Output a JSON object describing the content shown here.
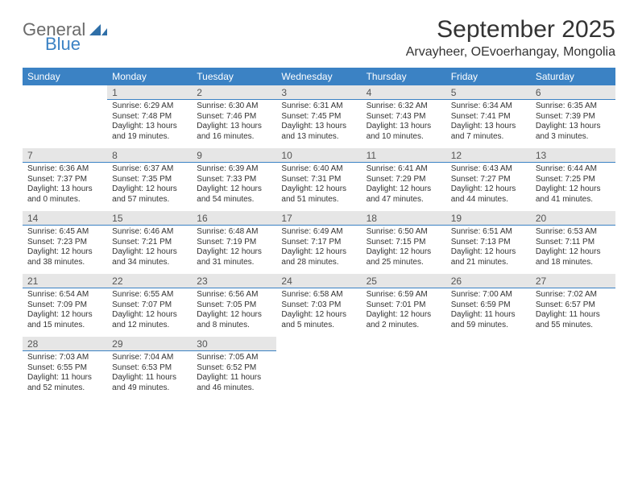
{
  "logo": {
    "word1": "General",
    "word2": "Blue"
  },
  "title": "September 2025",
  "location": "Arvayheer, OEvoerhangay, Mongolia",
  "day_headers": [
    "Sunday",
    "Monday",
    "Tuesday",
    "Wednesday",
    "Thursday",
    "Friday",
    "Saturday"
  ],
  "colors": {
    "header_bg": "#3b82c4",
    "header_fg": "#ffffff",
    "band_bg": "#e6e6e6",
    "band_border": "#3b82c4",
    "text": "#333333"
  },
  "weeks": [
    [
      {
        "n": "",
        "lines": []
      },
      {
        "n": "1",
        "lines": [
          "Sunrise: 6:29 AM",
          "Sunset: 7:48 PM",
          "Daylight: 13 hours and 19 minutes."
        ]
      },
      {
        "n": "2",
        "lines": [
          "Sunrise: 6:30 AM",
          "Sunset: 7:46 PM",
          "Daylight: 13 hours and 16 minutes."
        ]
      },
      {
        "n": "3",
        "lines": [
          "Sunrise: 6:31 AM",
          "Sunset: 7:45 PM",
          "Daylight: 13 hours and 13 minutes."
        ]
      },
      {
        "n": "4",
        "lines": [
          "Sunrise: 6:32 AM",
          "Sunset: 7:43 PM",
          "Daylight: 13 hours and 10 minutes."
        ]
      },
      {
        "n": "5",
        "lines": [
          "Sunrise: 6:34 AM",
          "Sunset: 7:41 PM",
          "Daylight: 13 hours and 7 minutes."
        ]
      },
      {
        "n": "6",
        "lines": [
          "Sunrise: 6:35 AM",
          "Sunset: 7:39 PM",
          "Daylight: 13 hours and 3 minutes."
        ]
      }
    ],
    [
      {
        "n": "7",
        "lines": [
          "Sunrise: 6:36 AM",
          "Sunset: 7:37 PM",
          "Daylight: 13 hours and 0 minutes."
        ]
      },
      {
        "n": "8",
        "lines": [
          "Sunrise: 6:37 AM",
          "Sunset: 7:35 PM",
          "Daylight: 12 hours and 57 minutes."
        ]
      },
      {
        "n": "9",
        "lines": [
          "Sunrise: 6:39 AM",
          "Sunset: 7:33 PM",
          "Daylight: 12 hours and 54 minutes."
        ]
      },
      {
        "n": "10",
        "lines": [
          "Sunrise: 6:40 AM",
          "Sunset: 7:31 PM",
          "Daylight: 12 hours and 51 minutes."
        ]
      },
      {
        "n": "11",
        "lines": [
          "Sunrise: 6:41 AM",
          "Sunset: 7:29 PM",
          "Daylight: 12 hours and 47 minutes."
        ]
      },
      {
        "n": "12",
        "lines": [
          "Sunrise: 6:43 AM",
          "Sunset: 7:27 PM",
          "Daylight: 12 hours and 44 minutes."
        ]
      },
      {
        "n": "13",
        "lines": [
          "Sunrise: 6:44 AM",
          "Sunset: 7:25 PM",
          "Daylight: 12 hours and 41 minutes."
        ]
      }
    ],
    [
      {
        "n": "14",
        "lines": [
          "Sunrise: 6:45 AM",
          "Sunset: 7:23 PM",
          "Daylight: 12 hours and 38 minutes."
        ]
      },
      {
        "n": "15",
        "lines": [
          "Sunrise: 6:46 AM",
          "Sunset: 7:21 PM",
          "Daylight: 12 hours and 34 minutes."
        ]
      },
      {
        "n": "16",
        "lines": [
          "Sunrise: 6:48 AM",
          "Sunset: 7:19 PM",
          "Daylight: 12 hours and 31 minutes."
        ]
      },
      {
        "n": "17",
        "lines": [
          "Sunrise: 6:49 AM",
          "Sunset: 7:17 PM",
          "Daylight: 12 hours and 28 minutes."
        ]
      },
      {
        "n": "18",
        "lines": [
          "Sunrise: 6:50 AM",
          "Sunset: 7:15 PM",
          "Daylight: 12 hours and 25 minutes."
        ]
      },
      {
        "n": "19",
        "lines": [
          "Sunrise: 6:51 AM",
          "Sunset: 7:13 PM",
          "Daylight: 12 hours and 21 minutes."
        ]
      },
      {
        "n": "20",
        "lines": [
          "Sunrise: 6:53 AM",
          "Sunset: 7:11 PM",
          "Daylight: 12 hours and 18 minutes."
        ]
      }
    ],
    [
      {
        "n": "21",
        "lines": [
          "Sunrise: 6:54 AM",
          "Sunset: 7:09 PM",
          "Daylight: 12 hours and 15 minutes."
        ]
      },
      {
        "n": "22",
        "lines": [
          "Sunrise: 6:55 AM",
          "Sunset: 7:07 PM",
          "Daylight: 12 hours and 12 minutes."
        ]
      },
      {
        "n": "23",
        "lines": [
          "Sunrise: 6:56 AM",
          "Sunset: 7:05 PM",
          "Daylight: 12 hours and 8 minutes."
        ]
      },
      {
        "n": "24",
        "lines": [
          "Sunrise: 6:58 AM",
          "Sunset: 7:03 PM",
          "Daylight: 12 hours and 5 minutes."
        ]
      },
      {
        "n": "25",
        "lines": [
          "Sunrise: 6:59 AM",
          "Sunset: 7:01 PM",
          "Daylight: 12 hours and 2 minutes."
        ]
      },
      {
        "n": "26",
        "lines": [
          "Sunrise: 7:00 AM",
          "Sunset: 6:59 PM",
          "Daylight: 11 hours and 59 minutes."
        ]
      },
      {
        "n": "27",
        "lines": [
          "Sunrise: 7:02 AM",
          "Sunset: 6:57 PM",
          "Daylight: 11 hours and 55 minutes."
        ]
      }
    ],
    [
      {
        "n": "28",
        "lines": [
          "Sunrise: 7:03 AM",
          "Sunset: 6:55 PM",
          "Daylight: 11 hours and 52 minutes."
        ]
      },
      {
        "n": "29",
        "lines": [
          "Sunrise: 7:04 AM",
          "Sunset: 6:53 PM",
          "Daylight: 11 hours and 49 minutes."
        ]
      },
      {
        "n": "30",
        "lines": [
          "Sunrise: 7:05 AM",
          "Sunset: 6:52 PM",
          "Daylight: 11 hours and 46 minutes."
        ]
      },
      {
        "n": "",
        "lines": []
      },
      {
        "n": "",
        "lines": []
      },
      {
        "n": "",
        "lines": []
      },
      {
        "n": "",
        "lines": []
      }
    ]
  ]
}
